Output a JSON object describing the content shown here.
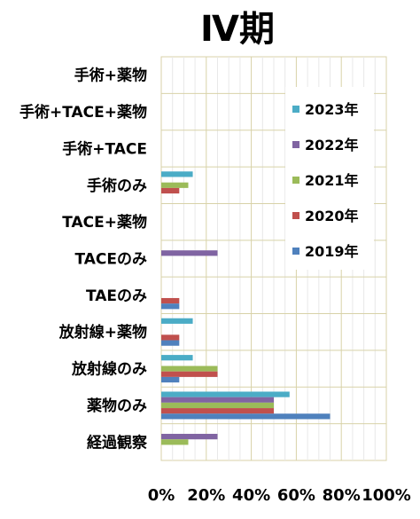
{
  "chart_data": {
    "type": "bar",
    "orientation": "horizontal",
    "title": "Ⅳ期",
    "categories": [
      "手術+薬物",
      "手術+TACE+薬物",
      "手術+TACE",
      "手術のみ",
      "TACE+薬物",
      "TACEのみ",
      "TAEのみ",
      "放射線+薬物",
      "放射線のみ",
      "薬物のみ",
      "経過観察"
    ],
    "series": [
      {
        "name": "2023年",
        "color": "#4BACC6",
        "values": [
          0,
          0,
          0,
          14,
          0,
          0,
          0,
          14,
          14,
          57,
          0
        ]
      },
      {
        "name": "2022年",
        "color": "#8064A2",
        "values": [
          0,
          0,
          0,
          0,
          0,
          25,
          0,
          0,
          0,
          50,
          25
        ]
      },
      {
        "name": "2021年",
        "color": "#9BBB59",
        "values": [
          0,
          0,
          0,
          12,
          0,
          0,
          0,
          0,
          25,
          50,
          12
        ]
      },
      {
        "name": "2020年",
        "color": "#C0504D",
        "values": [
          0,
          0,
          0,
          8,
          0,
          0,
          8,
          8,
          25,
          50,
          0
        ]
      },
      {
        "name": "2019年",
        "color": "#4F81BD",
        "values": [
          0,
          0,
          0,
          0,
          0,
          0,
          8,
          8,
          8,
          75,
          0
        ]
      }
    ],
    "xlim": [
      0,
      100
    ],
    "xticks": [
      "0%",
      "20%",
      "40%",
      "60%",
      "80%",
      "100%"
    ],
    "grid": true,
    "legend": "right"
  }
}
